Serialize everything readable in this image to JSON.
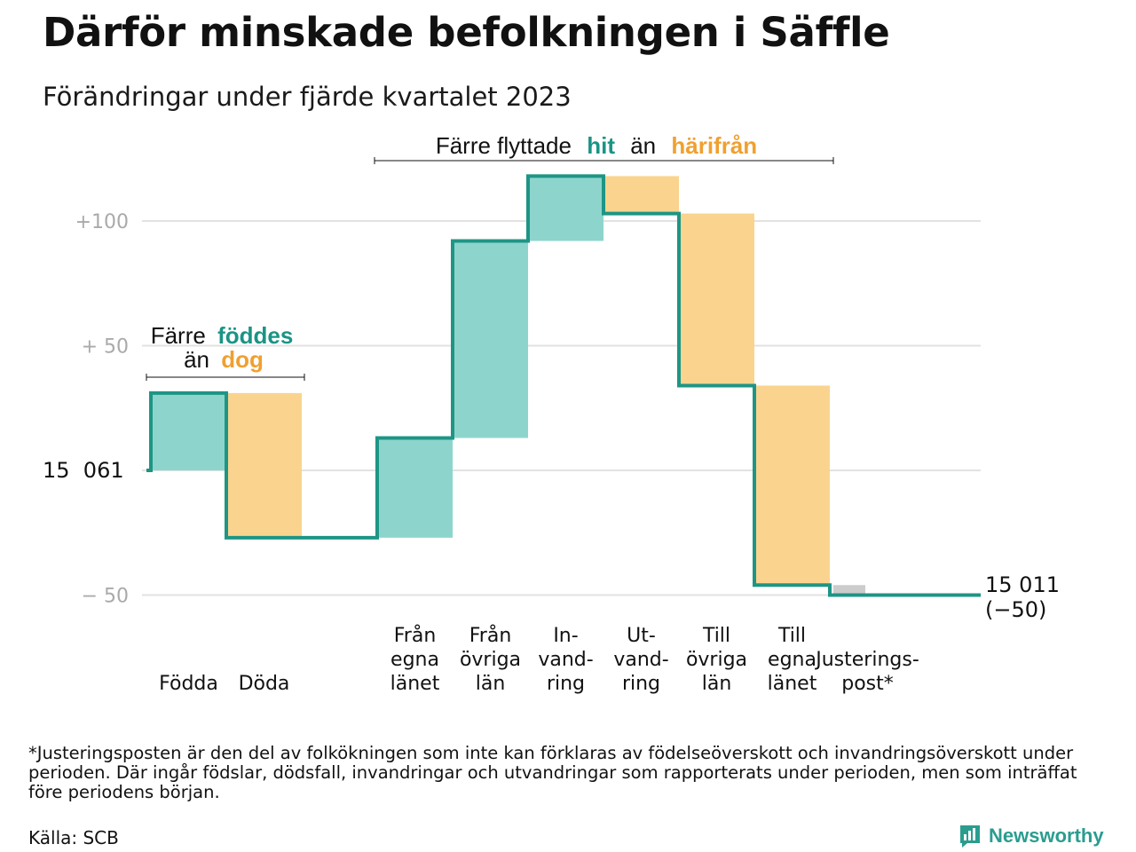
{
  "title": "Därför minskade befolkningen i Säffle",
  "subtitle": "Förändringar under fjärde kvartalet 2023",
  "annotations": {
    "births": {
      "line1": "Färre",
      "line1_highlight": "föddes",
      "line2": "än",
      "line2_highlight": "dog"
    },
    "migration": {
      "text1": "Färre flyttade",
      "highlight1": "hit",
      "text2": "än",
      "highlight2": "härifrån"
    }
  },
  "start_label": "15  061",
  "end_label_line1": "15 011",
  "end_label_line2": "(−50)",
  "footnote": "*Justeringsposten är den del av folkökningen som inte kan förklaras av födelseöverskott och invandringsöverskott under perioden. Där ingår födslar, dödsfall, invandringar och utvandringar som rapporterats under perioden, men som inträffat före periodens början.",
  "source": "Källa: SCB",
  "logo": {
    "name": "Newsworthy",
    "icon": "bar-chart-logo-icon"
  },
  "colors": {
    "increase": "#8dd5cc",
    "decrease": "#fad48e",
    "adjustment": "#cccccc",
    "line": "#1e9585",
    "teal_text": "#1a9486",
    "orange_text": "#f0a030",
    "grid": "#e2e2e2",
    "axis_text": "#aaaaaa"
  },
  "chart_data": {
    "type": "waterfall",
    "base_value": 15061,
    "end_value": 15011,
    "net_change": -50,
    "y_ticks": [
      {
        "value": 100,
        "label": "+100"
      },
      {
        "value": 50,
        "label": "+  50"
      },
      {
        "value": 0,
        "label": ""
      },
      {
        "value": -50,
        "label": "−  50"
      }
    ],
    "ylim": [
      -60,
      120
    ],
    "steps": [
      {
        "label": [
          "Födda"
        ],
        "change": 31,
        "kind": "increase"
      },
      {
        "label": [
          "Döda"
        ],
        "change": -58,
        "kind": "decrease"
      },
      {
        "label": [],
        "change": 0,
        "kind": "gap"
      },
      {
        "label": [
          "Från",
          "egna",
          "länet"
        ],
        "change": 40,
        "kind": "increase"
      },
      {
        "label": [
          "Från",
          "övriga",
          "län"
        ],
        "change": 79,
        "kind": "increase"
      },
      {
        "label": [
          "In-",
          "vand-",
          "ring"
        ],
        "change": 26,
        "kind": "increase"
      },
      {
        "label": [
          "Ut-",
          "vand-",
          "ring"
        ],
        "change": -15,
        "kind": "decrease"
      },
      {
        "label": [
          "Till",
          "övriga",
          "län"
        ],
        "change": -69,
        "kind": "decrease"
      },
      {
        "label": [
          "Till",
          "egna",
          "länet"
        ],
        "change": -80,
        "kind": "decrease"
      },
      {
        "label": [
          "Justerings-",
          "post*"
        ],
        "change": -4,
        "kind": "adjustment"
      }
    ]
  }
}
